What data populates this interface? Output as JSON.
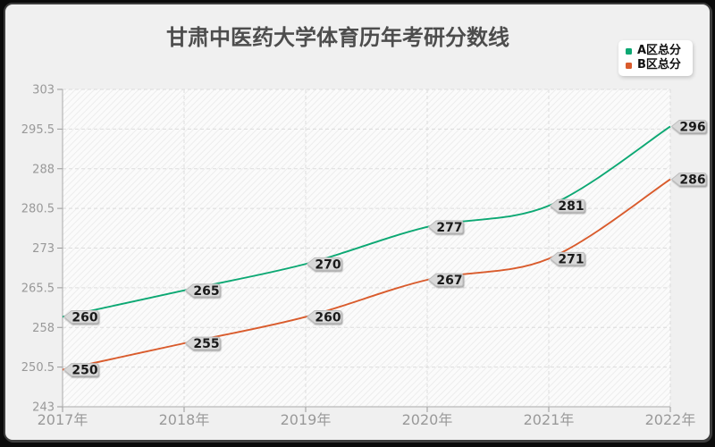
{
  "chart_data": {
    "type": "line",
    "title": "甘肃中医药大学体育历年考研分数线",
    "categories": [
      "2017年",
      "2018年",
      "2019年",
      "2020年",
      "2021年",
      "2022年"
    ],
    "series": [
      {
        "name": "A区总分",
        "color": "#0ca873",
        "values": [
          260,
          265,
          270,
          277,
          281,
          296
        ]
      },
      {
        "name": "B区总分",
        "color": "#d95b2c",
        "values": [
          250,
          255,
          260,
          267,
          271,
          286
        ]
      }
    ],
    "ylim": [
      243,
      303
    ],
    "yticks": [
      243,
      250.5,
      258,
      265.5,
      273,
      280.5,
      288,
      295.5,
      303
    ],
    "grid": "dashed horizontal and vertical gridlines, hatched plot background",
    "legend_position": "top-right",
    "smooth": true,
    "point_labels": "every point labelled with its value in a grey arrow tag"
  },
  "style": {
    "frame_color": "#0b0b0b",
    "panel_bg": "#f0f0f0",
    "panel_border": "#3d3d3d",
    "plot_bg": "#fbfbfb",
    "hatch_color": "#ededed",
    "grid_color": "#dcdcdc",
    "axis_color": "#aaaaaa",
    "tick_color": "#999999",
    "y_label_color": "#999999",
    "x_label_color": "#999999",
    "title_color": "#4d4d4d",
    "tag_bg": "#d9d9d9",
    "tag_border": "#bdbdbd",
    "tag_text_color": "#1a1a1a",
    "legend_bg": "#ffffff",
    "legend_text_color": "#111111"
  }
}
